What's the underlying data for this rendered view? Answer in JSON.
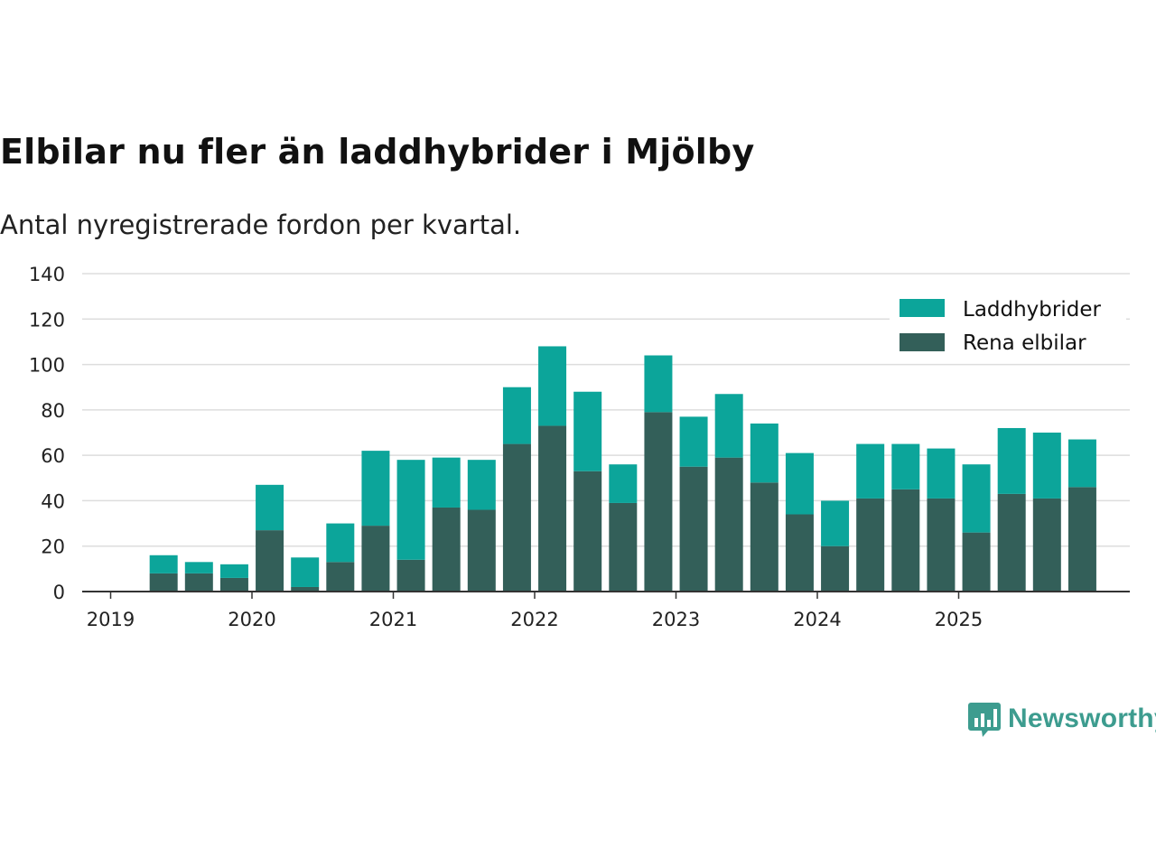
{
  "title": "Elbilar nu fler än laddhybrider i Mjölby",
  "subtitle": "Antal nyregistrerade fordon per kvartal.",
  "brand": {
    "name": "Newsworthy",
    "color": "#3d9c8f"
  },
  "chart_data": {
    "type": "bar",
    "stacked": true,
    "categories": [
      "2019 Q2",
      "2019 Q3",
      "2019 Q4",
      "2020 Q1",
      "2020 Q2",
      "2020 Q3",
      "2020 Q4",
      "2021 Q1",
      "2021 Q2",
      "2021 Q3",
      "2021 Q4",
      "2022 Q1",
      "2022 Q2",
      "2022 Q3",
      "2022 Q4",
      "2023 Q1",
      "2023 Q2",
      "2023 Q3",
      "2023 Q4",
      "2024 Q1",
      "2024 Q2",
      "2024 Q3",
      "2024 Q4",
      "2025 Q1",
      "2025 Q2",
      "2025 Q3",
      "2025 Q4"
    ],
    "series": [
      {
        "name": "Rena elbilar",
        "color": "#335f59",
        "values": [
          8,
          8,
          6,
          27,
          2,
          13,
          29,
          14,
          37,
          36,
          65,
          73,
          53,
          39,
          79,
          55,
          59,
          48,
          34,
          20,
          41,
          45,
          41,
          26,
          43,
          41,
          46
        ]
      },
      {
        "name": "Laddhybrider",
        "color": "#0ca59a",
        "values": [
          8,
          5,
          6,
          20,
          13,
          17,
          33,
          44,
          22,
          22,
          25,
          35,
          35,
          17,
          25,
          22,
          28,
          26,
          27,
          20,
          24,
          20,
          22,
          30,
          29,
          29,
          21
        ]
      }
    ],
    "x_ticks": [
      "2019",
      "2020",
      "2021",
      "2022",
      "2023",
      "2024",
      "2025"
    ],
    "y_ticks": [
      0,
      20,
      40,
      60,
      80,
      100,
      120,
      140
    ],
    "ylim": [
      0,
      140
    ],
    "legend": [
      "Laddhybrider",
      "Rena elbilar"
    ],
    "legend_position": "top-right",
    "grid": true
  }
}
